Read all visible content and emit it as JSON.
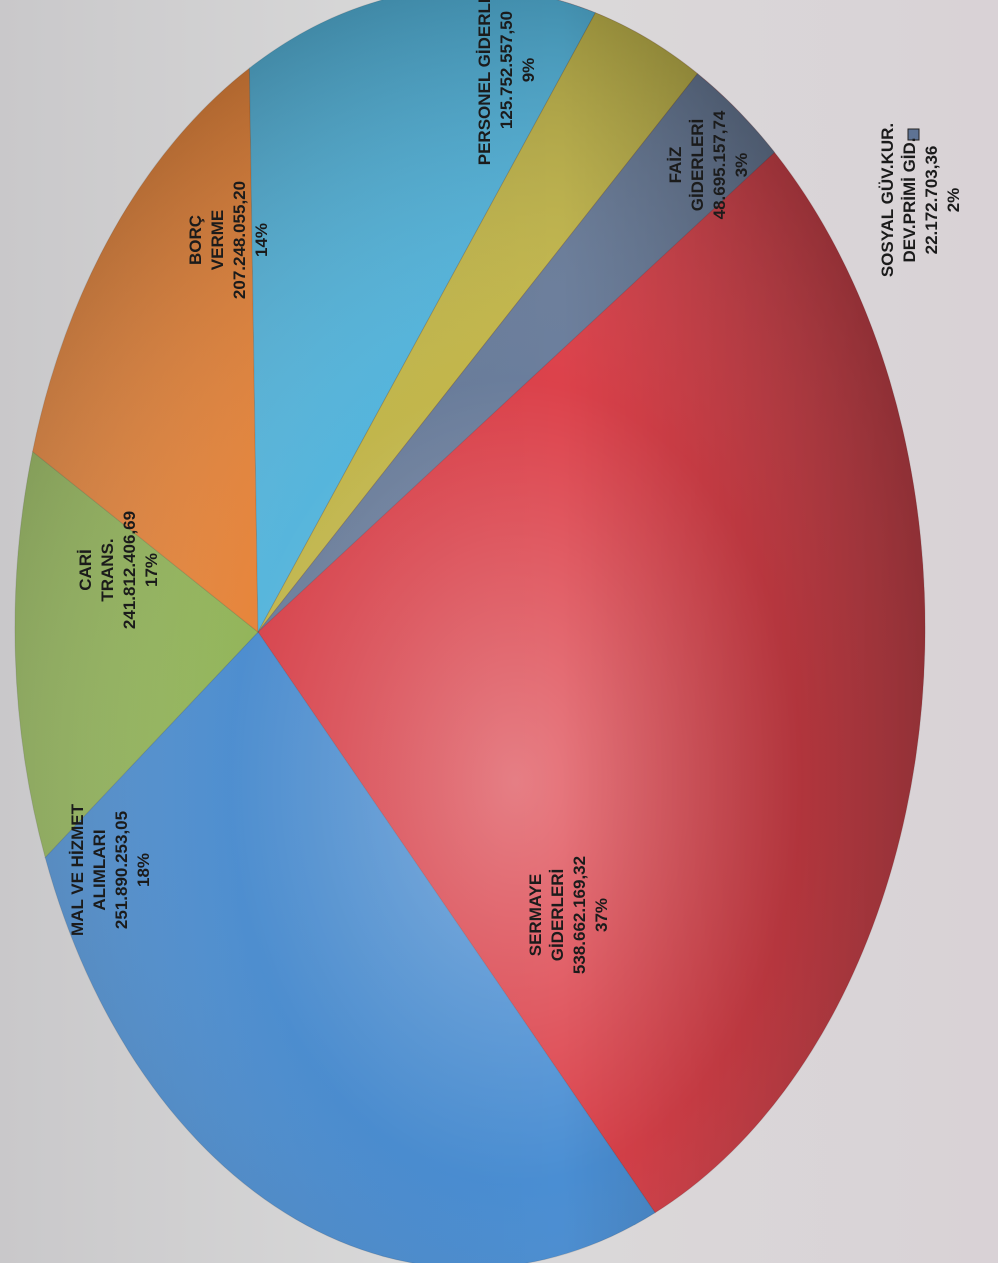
{
  "chart_data": {
    "type": "pie",
    "title": "",
    "legend_position": "outside-right",
    "slices": [
      {
        "lines": [
          "SERMAYE",
          "GİDERLERİ"
        ],
        "value_text": "538.662.169,32",
        "pct_text": "37%",
        "value": 538662169.32,
        "color": "#d9313b"
      },
      {
        "lines": [
          "MAL VE HİZMET",
          "ALIMLARI"
        ],
        "value_text": "251.890.253,05",
        "pct_text": "18%",
        "value": 251890253.05,
        "color": "#3a84cf"
      },
      {
        "lines": [
          "CARİ",
          "TRANS."
        ],
        "value_text": "241.812.406,69",
        "pct_text": "17%",
        "value": 241812406.69,
        "color": "#8ab149"
      },
      {
        "lines": [
          "BORÇ",
          "VERME"
        ],
        "value_text": "207.248.055,20",
        "pct_text": "14%",
        "value": 207248055.2,
        "color": "#ea7a25"
      },
      {
        "lines": [
          "PERSONEL GİDERLERİ"
        ],
        "value_text": "125.752.557,50",
        "pct_text": "9%",
        "value": 125752557.5,
        "color": "#46b2de"
      },
      {
        "lines": [
          "FAİZ",
          "GİDERLERİ"
        ],
        "value_text": "48.695.157,74",
        "pct_text": "3%",
        "value": 48695157.74,
        "color": "#c0b33c"
      },
      {
        "lines": [
          "SOSYAL GÜV.KUR.",
          "DEV.PRİMİ GİD."
        ],
        "value_text": "22.172.703,36",
        "pct_text": "2%",
        "value": 22172703.36,
        "color": "#5e7394"
      }
    ]
  }
}
